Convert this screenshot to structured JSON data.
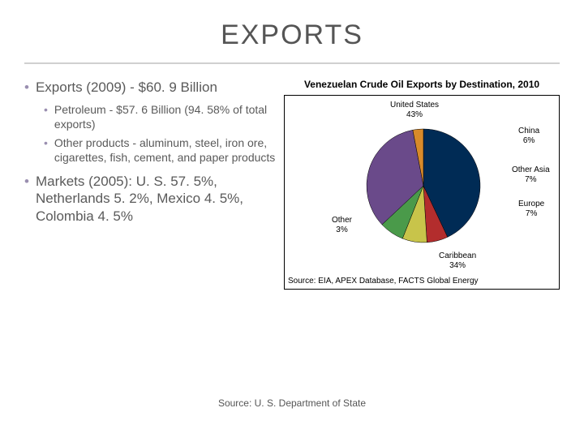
{
  "title": "EXPORTS",
  "bullets": {
    "b1": "Exports (2009) - $60. 9 Billion",
    "b1a": "Petroleum - $57. 6 Billion (94. 58% of total exports)",
    "b1b": "Other products - aluminum, steel, iron ore, cigarettes, fish, cement, and paper products",
    "b2": "Markets (2005): U. S. 57. 5%, Netherlands 5. 2%, Mexico 4. 5%, Colombia 4. 5%"
  },
  "chart": {
    "type": "pie",
    "title": "Venezuelan Crude Oil Exports by Destination, 2010",
    "source": "Source: EIA, APEX Database, FACTS Global Energy",
    "radius": 70,
    "background_color": "#ffffff",
    "border_color": "#000000",
    "label_fontsize": 10,
    "slices": [
      {
        "label": "United States",
        "pct": "43%",
        "value": 43,
        "color": "#002b55"
      },
      {
        "label": "China",
        "pct": "6%",
        "value": 6,
        "color": "#b32d2d"
      },
      {
        "label": "Other Asia",
        "pct": "7%",
        "value": 7,
        "color": "#c8c44a"
      },
      {
        "label": "Europe",
        "pct": "7%",
        "value": 7,
        "color": "#4a9a4a"
      },
      {
        "label": "Caribbean",
        "pct": "34%",
        "value": 34,
        "color": "#6a4a8a"
      },
      {
        "label": "Other",
        "pct": "3%",
        "value": 3,
        "color": "#d88a2a"
      }
    ]
  },
  "footer_source": "Source: U. S. Department of State"
}
